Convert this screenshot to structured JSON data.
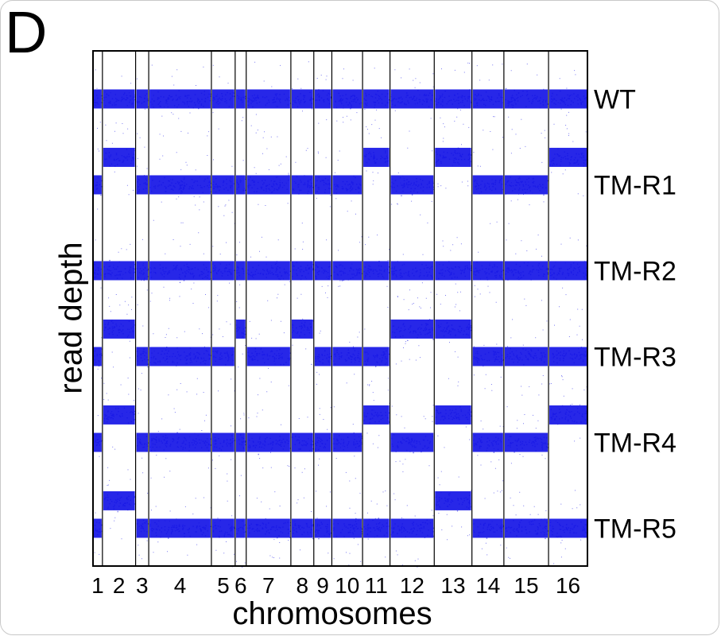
{
  "figure": {
    "panel_label": "D"
  },
  "chart_data": {
    "type": "scatter",
    "xlabel": "chromosomes",
    "ylabel": "read depth",
    "categories": [
      "1",
      "2",
      "3",
      "4",
      "5",
      "6",
      "7",
      "8",
      "9",
      "10",
      "11",
      "12",
      "13",
      "14",
      "15",
      "16"
    ],
    "chromosome_relative_sizes": [
      0.23,
      0.81,
      0.32,
      1.53,
      0.58,
      0.27,
      1.09,
      0.56,
      0.44,
      0.75,
      0.67,
      1.08,
      0.92,
      0.78,
      1.09,
      0.95
    ],
    "tracks": [
      {
        "name": "WT",
        "relative_copy_level": [
          1,
          1,
          1,
          1,
          1,
          1,
          1,
          1,
          1,
          1,
          1,
          1,
          1,
          1,
          1,
          1
        ]
      },
      {
        "name": "TM-R1",
        "relative_copy_level": [
          1,
          2,
          1,
          1,
          1,
          1,
          1,
          1,
          1,
          1,
          2,
          1,
          2,
          1,
          1,
          2
        ]
      },
      {
        "name": "TM-R2",
        "relative_copy_level": [
          1,
          1,
          1,
          1,
          1,
          1,
          1,
          1,
          1,
          1,
          1,
          1,
          1,
          1,
          1,
          1
        ]
      },
      {
        "name": "TM-R3",
        "relative_copy_level": [
          1,
          2,
          1,
          1,
          1,
          2,
          1,
          2,
          1,
          1,
          1,
          2,
          2,
          1,
          1,
          1
        ]
      },
      {
        "name": "TM-R4",
        "relative_copy_level": [
          1,
          2,
          1,
          1,
          1,
          1,
          1,
          1,
          1,
          1,
          2,
          1,
          2,
          1,
          1,
          2
        ]
      },
      {
        "name": "TM-R5",
        "relative_copy_level": [
          1,
          2,
          1,
          1,
          1,
          1,
          1,
          1,
          1,
          1,
          1,
          1,
          2,
          1,
          1,
          1
        ]
      }
    ],
    "point_color": "#1010e6",
    "grid": false
  }
}
